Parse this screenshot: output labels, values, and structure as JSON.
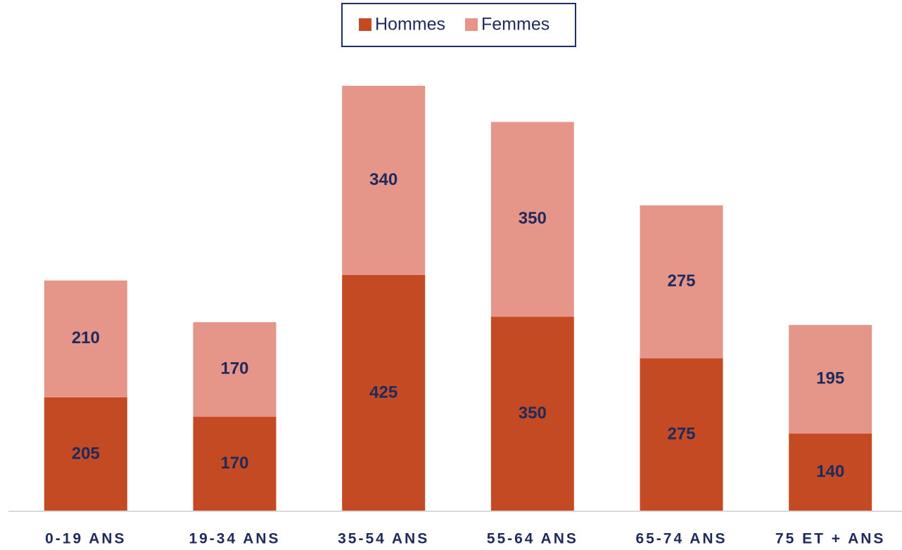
{
  "chart_data": {
    "type": "stacked_bar",
    "categories": [
      "0-19 ANS",
      "19-34 ANS",
      "35-54 ANS",
      "55-64 ANS",
      "65-74 ANS",
      "75 ET + ANS"
    ],
    "series": [
      {
        "name": "Hommes",
        "color": "#c44a23",
        "values": [
          205,
          170,
          425,
          350,
          275,
          140
        ]
      },
      {
        "name": "Femmes",
        "color": "#e69688",
        "values": [
          210,
          170,
          340,
          350,
          275,
          195
        ]
      }
    ],
    "legend": "top"
  }
}
